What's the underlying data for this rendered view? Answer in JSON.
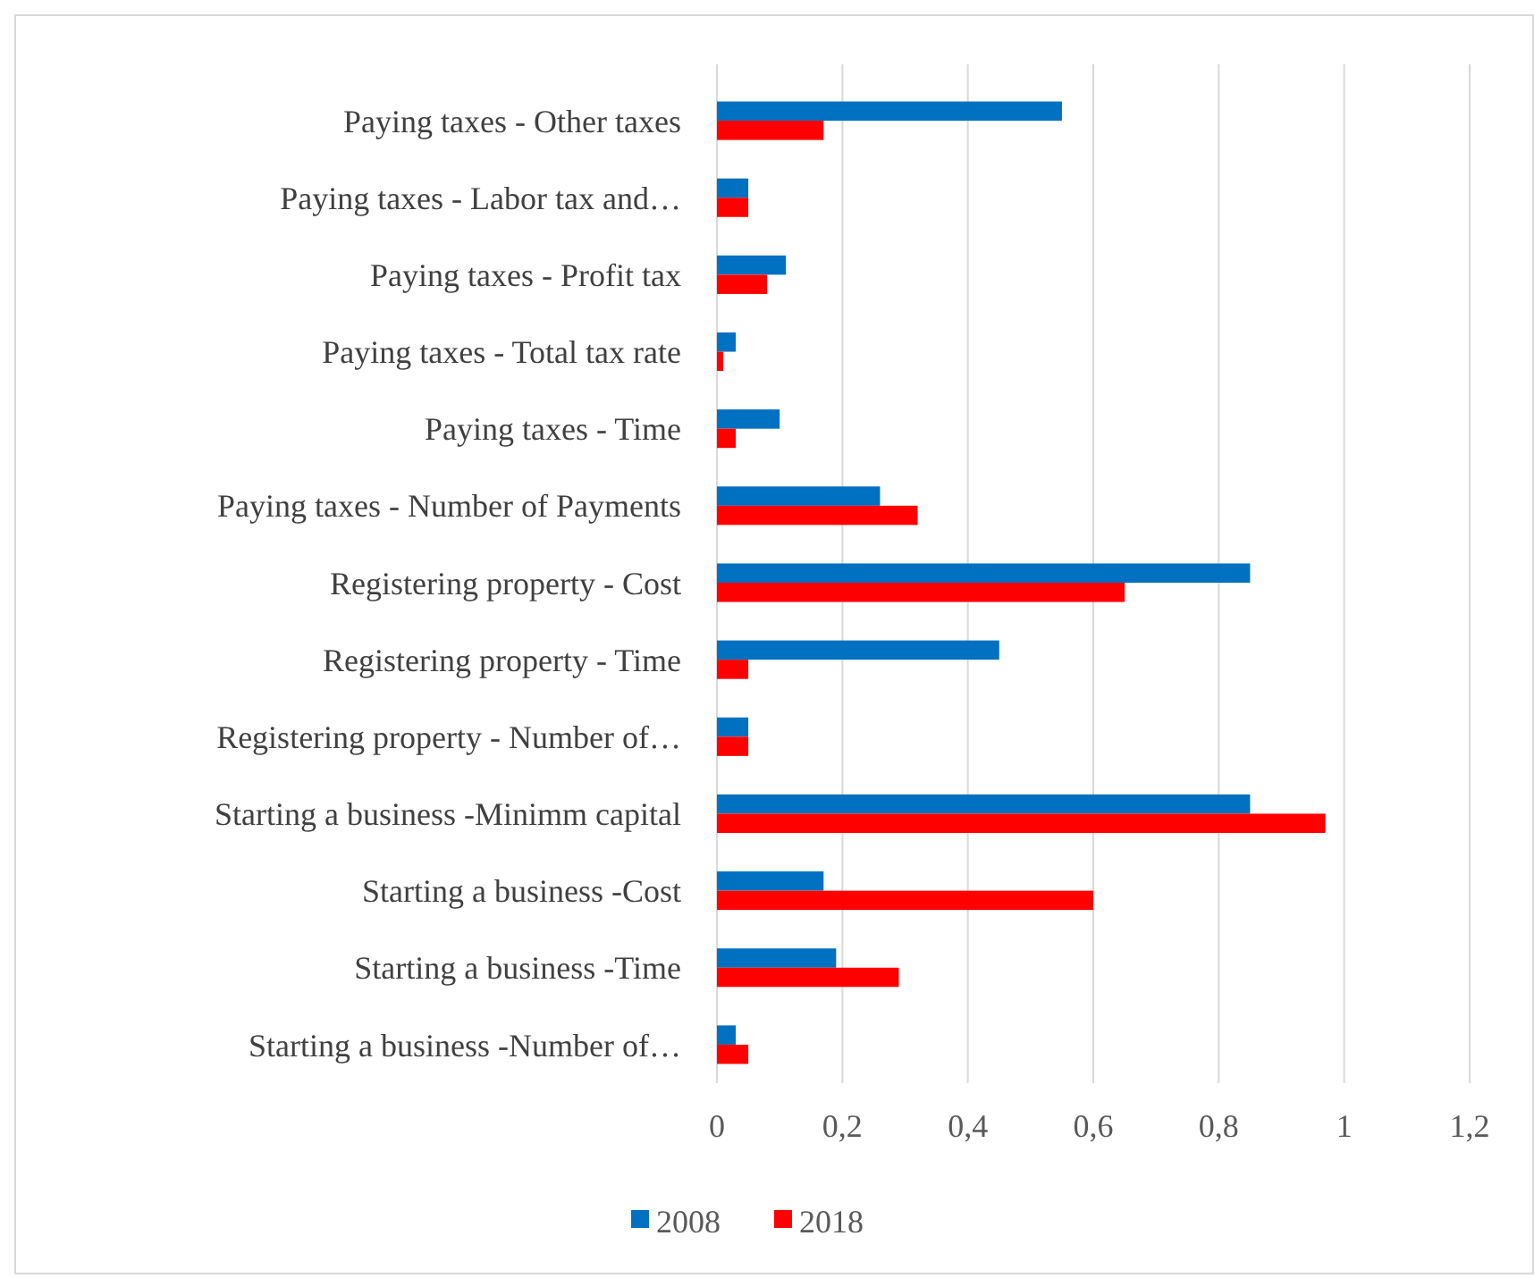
{
  "chart_data": {
    "type": "bar",
    "orientation": "horizontal",
    "categories": [
      "Paying taxes - Other taxes",
      "Paying taxes - Labor tax and…",
      "Paying taxes - Profit tax",
      "Paying taxes - Total tax rate",
      "Paying taxes - Time",
      "Paying taxes - Number of Payments",
      "Registering property - Cost",
      "Registering property - Time",
      "Registering property - Number of…",
      "Starting a business -Minimm capital",
      "Starting a business -Cost",
      "Starting a business -Time",
      "Starting a business -Number of…"
    ],
    "series": [
      {
        "name": "2008",
        "color": "#0070c0",
        "values": [
          0.55,
          0.05,
          0.11,
          0.03,
          0.1,
          0.26,
          0.85,
          0.45,
          0.05,
          0.85,
          0.17,
          0.19,
          0.03
        ]
      },
      {
        "name": "2018",
        "color": "#ff0000",
        "values": [
          0.17,
          0.05,
          0.08,
          0.01,
          0.03,
          0.32,
          0.65,
          0.05,
          0.05,
          0.97,
          0.6,
          0.29,
          0.05
        ]
      }
    ],
    "xlim": [
      0,
      1.2
    ],
    "xticks": [
      {
        "value": 0,
        "label": "0"
      },
      {
        "value": 0.2,
        "label": "0,2"
      },
      {
        "value": 0.4,
        "label": "0,4"
      },
      {
        "value": 0.6,
        "label": "0,6"
      },
      {
        "value": 0.8,
        "label": "0,8"
      },
      {
        "value": 1,
        "label": "1"
      },
      {
        "value": 1.2,
        "label": "1,2"
      }
    ],
    "grid": "x",
    "legend": "bottom"
  }
}
